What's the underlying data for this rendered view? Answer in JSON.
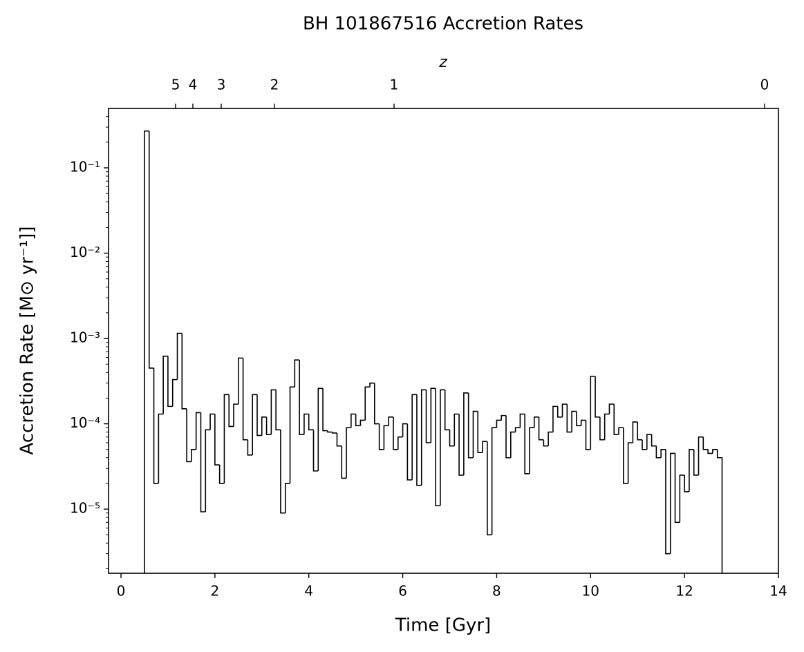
{
  "chart_data": {
    "type": "histogram",
    "title": "BH 101867516 Accretion Rates",
    "xlabel": "Time [Gyr]",
    "ylabel": "Accretion Rate [M⊙ yr⁻¹]]",
    "x2label": "z",
    "color": "#000000",
    "yscale": "log",
    "xlim": [
      -0.265,
      14
    ],
    "ylim": [
      1.77e-06,
      0.497
    ],
    "xticks": [
      0,
      2,
      4,
      6,
      8,
      10,
      12,
      14
    ],
    "yticks": [
      {
        "value": 1e-05,
        "label": "10⁻⁵"
      },
      {
        "value": 0.0001,
        "label": "10⁻⁴"
      },
      {
        "value": 0.001,
        "label": "10⁻³"
      },
      {
        "value": 0.01,
        "label": "10⁻²"
      },
      {
        "value": 0.1,
        "label": "10⁻¹"
      }
    ],
    "x2ticks": [
      {
        "value": 1.163,
        "label": "5"
      },
      {
        "value": 1.531,
        "label": "4"
      },
      {
        "value": 2.135,
        "label": "3"
      },
      {
        "value": 3.268,
        "label": "2"
      },
      {
        "value": 5.815,
        "label": "1"
      },
      {
        "value": 13.705,
        "label": "0"
      }
    ],
    "bins": [
      0.5,
      0.6,
      0.7,
      0.8,
      0.9,
      1.0,
      1.1,
      1.2,
      1.3,
      1.4,
      1.5,
      1.6,
      1.7,
      1.8,
      1.9,
      2.0,
      2.1,
      2.2,
      2.3,
      2.4,
      2.5,
      2.6,
      2.7,
      2.8,
      2.9,
      3.0,
      3.1,
      3.2,
      3.3,
      3.4,
      3.5,
      3.6,
      3.7,
      3.8,
      3.9,
      4.0,
      4.1,
      4.2,
      4.3,
      4.4,
      4.5,
      4.6,
      4.7,
      4.8,
      4.9,
      5.0,
      5.1,
      5.2,
      5.3,
      5.4,
      5.5,
      5.6,
      5.7,
      5.8,
      5.9,
      6.0,
      6.1,
      6.2,
      6.3,
      6.4,
      6.5,
      6.6,
      6.7,
      6.8,
      6.9,
      7.0,
      7.1,
      7.2,
      7.3,
      7.4,
      7.5,
      7.6,
      7.7,
      7.8,
      7.9,
      8.0,
      8.1,
      8.2,
      8.3,
      8.4,
      8.5,
      8.6,
      8.7,
      8.8,
      8.9,
      9.0,
      9.1,
      9.2,
      9.3,
      9.4,
      9.5,
      9.6,
      9.7,
      9.8,
      9.9,
      10.0,
      10.1,
      10.2,
      10.3,
      10.4,
      10.5,
      10.6,
      10.7,
      10.8,
      10.9,
      11.0,
      11.1,
      11.2,
      11.3,
      11.4,
      11.5,
      11.6,
      11.7,
      11.8,
      11.9,
      12.0,
      12.1,
      12.2,
      12.3,
      12.4,
      12.5,
      12.6,
      12.7,
      12.8
    ],
    "values": [
      0.27,
      0.00045,
      2e-05,
      0.00013,
      0.00062,
      0.00016,
      0.00033,
      0.00115,
      0.00015,
      3.6e-05,
      5e-05,
      0.000135,
      9.3e-06,
      8.5e-05,
      0.00013,
      3.3e-05,
      2e-05,
      0.00022,
      9.3e-05,
      0.00017,
      0.00059,
      6.5e-05,
      4.3e-05,
      0.00022,
      7.3e-05,
      0.00012,
      7.5e-05,
      0.00025,
      8.5e-05,
      9e-06,
      2e-05,
      0.00027,
      0.00056,
      7.5e-05,
      0.00013,
      8.5e-05,
      2.8e-05,
      0.00026,
      8.3e-05,
      8e-05,
      7.8e-05,
      5.5e-05,
      2.3e-05,
      9e-05,
      0.00013,
      9.5e-05,
      0.00011,
      0.00027,
      0.0003,
      0.0001,
      5e-05,
      9.5e-05,
      0.00012,
      5e-05,
      7e-05,
      0.0001,
      2.2e-05,
      0.00022,
      1.9e-05,
      0.00025,
      6e-05,
      0.00026,
      1.1e-05,
      0.00025,
      8.5e-05,
      5.5e-05,
      0.00013,
      2.5e-05,
      0.00023,
      4e-05,
      0.00014,
      4.6e-05,
      6.2e-05,
      5e-06,
      9e-05,
      0.00011,
      0.000125,
      4e-05,
      8e-05,
      9e-05,
      0.00013,
      2.6e-05,
      9e-05,
      0.00012,
      6.5e-05,
      5.5e-05,
      8e-05,
      0.00016,
      0.00012,
      0.00017,
      8e-05,
      0.00014,
      9.5e-05,
      0.00011,
      5e-05,
      0.00036,
      0.00012,
      6.5e-05,
      0.00013,
      0.00017,
      7.5e-05,
      9e-05,
      2e-05,
      6e-05,
      0.000105,
      6.5e-05,
      5e-05,
      7.5e-05,
      5.5e-05,
      4e-05,
      5e-05,
      3e-06,
      4.5e-05,
      7e-06,
      2.5e-05,
      1.6e-05,
      5e-05,
      2.5e-05,
      7e-05,
      5e-05,
      4.5e-05,
      5e-05,
      4e-05
    ]
  }
}
